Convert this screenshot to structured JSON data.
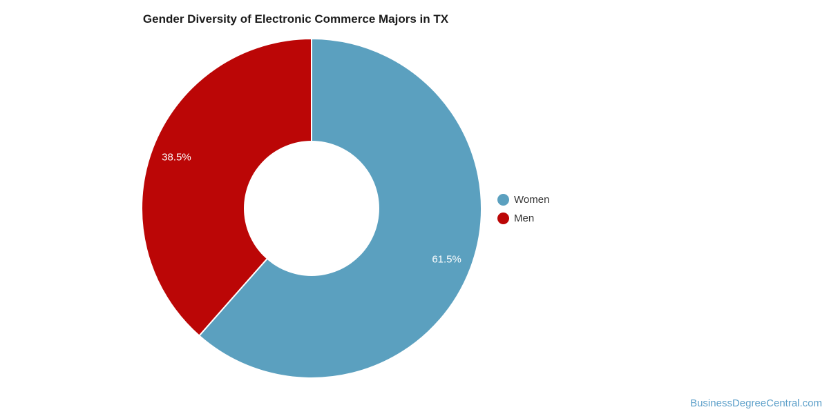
{
  "chart_data": {
    "type": "pie",
    "donut": true,
    "title": "Gender Diversity of Electronic Commerce Majors in TX",
    "slices": [
      {
        "label": "Women",
        "value": 61.5,
        "display": "61.5%",
        "color": "#5BA0BF"
      },
      {
        "label": "Men",
        "value": 38.5,
        "display": "38.5%",
        "color": "#BB0606"
      }
    ],
    "start_angle_deg": 0,
    "direction": "clockwise",
    "legend_position": "right",
    "slice_label_color": "#ffffff",
    "separator_color": "#ffffff",
    "background_color": "#ffffff",
    "title_color": "#1c1c1c",
    "legend_text_color": "#333333"
  },
  "watermark": {
    "text": "BusinessDegreeCentral.com",
    "color": "#5C9FC9"
  }
}
